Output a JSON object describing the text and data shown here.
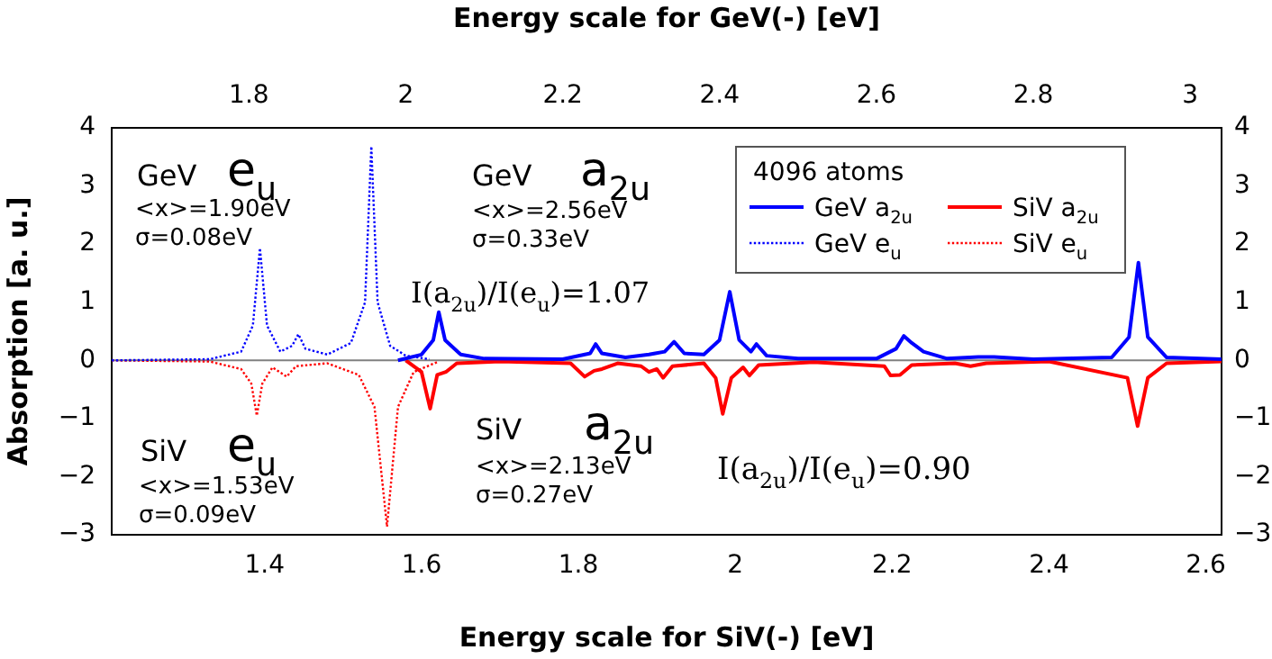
{
  "chart_data": {
    "type": "line",
    "xlabel": "Energy scale for SiV(-) [eV]",
    "x2label": "Energy scale for GeV(-) [eV]",
    "ylabel": "Absorption [a. u.]",
    "xlim": [
      1.205,
      2.62
    ],
    "xticks": [
      1.4,
      1.6,
      1.8,
      2,
      2.2,
      2.4,
      2.6
    ],
    "x2lim": [
      1.625,
      3.04
    ],
    "x2ticks": [
      1.8,
      2,
      2.2,
      2.4,
      2.6,
      2.8,
      3
    ],
    "ylim": [
      -3,
      4
    ],
    "yticks": [
      -3,
      -2,
      -1,
      0,
      1,
      2,
      3,
      4
    ],
    "y2lim": [
      -3,
      4
    ],
    "y2ticks": [
      -3,
      -2,
      -1,
      0,
      1,
      2,
      3,
      4
    ],
    "grid": false,
    "legend": "top right",
    "legend_title": "4096 atoms",
    "marker": "none",
    "ref_lines": [
      {
        "axis": "y",
        "value": 0,
        "color": "#808080"
      }
    ],
    "series": [
      {
        "name": "GeV a$_{2u}$",
        "color": "#0000ff",
        "axis": "x2",
        "line_style": "solid",
        "x": [
          1.99,
          2.02,
          2.035,
          2.042,
          2.05,
          2.07,
          2.1,
          2.2,
          2.235,
          2.242,
          2.25,
          2.28,
          2.31,
          2.318,
          2.33,
          2.342,
          2.355,
          2.38,
          2.4,
          2.413,
          2.425,
          2.44,
          2.447,
          2.46,
          2.5,
          2.6,
          2.625,
          2.635,
          2.645,
          2.66,
          2.69,
          2.73,
          2.75,
          2.8,
          2.9,
          2.922,
          2.934,
          2.946,
          2.97,
          3.04
        ],
        "values": [
          0,
          0.1,
          0.35,
          0.83,
          0.35,
          0.1,
          0.03,
          0.02,
          0.12,
          0.28,
          0.12,
          0.05,
          0.1,
          0.12,
          0.15,
          0.32,
          0.12,
          0.1,
          0.35,
          1.18,
          0.35,
          0.15,
          0.28,
          0.08,
          0.03,
          0.03,
          0.2,
          0.42,
          0.3,
          0.15,
          0.03,
          0.06,
          0.06,
          0.02,
          0.05,
          0.4,
          1.68,
          0.4,
          0.05,
          0.02
        ]
      },
      {
        "name": "GeV e$_{u}$",
        "color": "#0000ff",
        "axis": "x2",
        "line_style": "dotted",
        "x": [
          1.625,
          1.75,
          1.79,
          1.805,
          1.814,
          1.823,
          1.84,
          1.855,
          1.863,
          1.872,
          1.9,
          1.93,
          1.948,
          1.956,
          1.964,
          1.98,
          2.0,
          2.03
        ],
        "values": [
          0,
          0.02,
          0.15,
          0.6,
          1.93,
          0.6,
          0.15,
          0.25,
          0.45,
          0.2,
          0.1,
          0.3,
          1.0,
          3.68,
          1.0,
          0.25,
          0.08,
          0.02
        ]
      },
      {
        "name": "SiV a$_{2u}$",
        "color": "#ff0000",
        "line_style": "solid",
        "x": [
          1.58,
          1.6,
          1.611,
          1.62,
          1.631,
          1.645,
          1.7,
          1.79,
          1.808,
          1.82,
          1.83,
          1.85,
          1.88,
          1.89,
          1.9,
          1.908,
          1.92,
          1.96,
          1.975,
          1.984,
          1.995,
          2.01,
          2.018,
          2.03,
          2.1,
          2.19,
          2.198,
          2.21,
          2.225,
          2.28,
          2.3,
          2.32,
          2.4,
          2.5,
          2.513,
          2.526,
          2.55,
          2.62
        ],
        "values": [
          0,
          -0.2,
          -0.83,
          -0.25,
          -0.2,
          -0.05,
          -0.02,
          -0.05,
          -0.28,
          -0.18,
          -0.15,
          -0.05,
          -0.1,
          -0.2,
          -0.15,
          -0.3,
          -0.1,
          -0.05,
          -0.3,
          -0.92,
          -0.3,
          -0.12,
          -0.26,
          -0.08,
          -0.03,
          -0.1,
          -0.26,
          -0.25,
          -0.08,
          -0.05,
          -0.1,
          -0.05,
          -0.02,
          -0.3,
          -1.13,
          -0.3,
          -0.05,
          -0.02
        ]
      },
      {
        "name": "SiV e$_{u}$",
        "color": "#ff0000",
        "line_style": "dotted",
        "x": [
          1.205,
          1.33,
          1.37,
          1.383,
          1.39,
          1.397,
          1.41,
          1.428,
          1.44,
          1.48,
          1.52,
          1.54,
          1.556,
          1.57,
          1.59,
          1.62
        ],
        "values": [
          0,
          -0.02,
          -0.15,
          -0.4,
          -0.95,
          -0.4,
          -0.12,
          -0.28,
          -0.1,
          -0.05,
          -0.25,
          -0.8,
          -2.86,
          -0.8,
          -0.2,
          -0.03
        ]
      }
    ],
    "annotations": [
      "GeV",
      "e$_{u}$",
      "<x>=1.90eV",
      "σ=0.08eV",
      "GeV",
      "a$_{2u}$",
      "<x>=2.56eV",
      "σ=0.33eV",
      "I(a$_{2u}$)/I(e$_{u}$)=1.07",
      "SiV",
      "e$_{u}$",
      "<x>=1.53eV",
      "σ=0.09eV",
      "SiV",
      "a$_{2u}$",
      "<x>=2.13eV",
      "σ=0.27eV",
      "I(a$_{2u}$)/I(e$_{u}$)=0.90"
    ]
  }
}
